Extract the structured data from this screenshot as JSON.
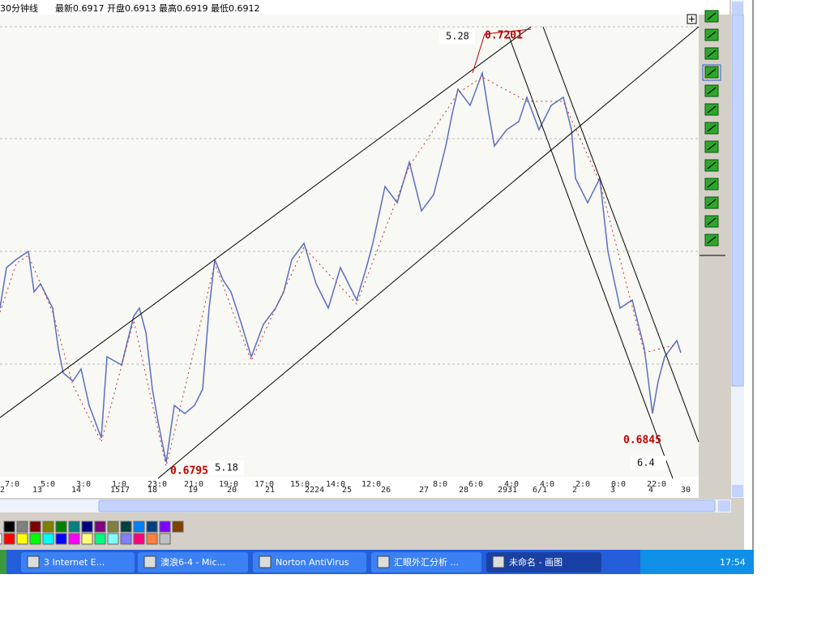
{
  "header": {
    "period": "30分钟线",
    "quote": "最新0.6917 开盘0.6913 最高0.6919 最低0.6912"
  },
  "annotations": [
    "5.28",
    "0.7201",
    "0.6795",
    "5.18",
    "0.6845",
    "6.4"
  ],
  "time_labels": [
    "7:0",
    "5:0",
    "3:0",
    "1:0",
    "23:0",
    "21:0",
    "19:0",
    "17:0",
    "15:0",
    "14:0",
    "12:0",
    "8:0",
    "6:0",
    "4:0",
    "4:0",
    "2:0",
    "0:0",
    "22:0"
  ],
  "date_labels": [
    "2",
    "13",
    "14",
    "1517",
    "18",
    "19",
    "20",
    "21",
    "2224",
    "25",
    "26",
    "27",
    "28",
    "2931",
    "6/1",
    "2",
    "3",
    "4",
    "30"
  ],
  "taskbar": {
    "items": [
      "3 Internet E...",
      "澳浪6-4 - Mic...",
      "Norton AntiVirus",
      "汇眼外汇分析 ...",
      "未命名 - 画图"
    ],
    "clock": "17:54"
  }
}
